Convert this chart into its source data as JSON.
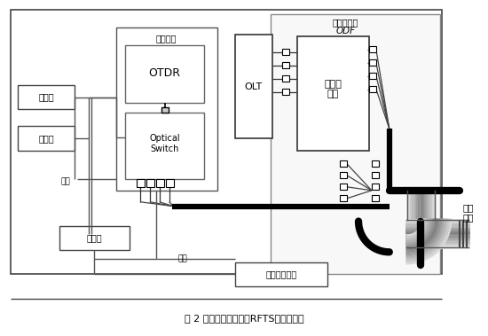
{
  "title": "图 2 集中光测量系统（RFTS）构成简图",
  "bg_color": "#ffffff",
  "odf_label": "光纤配线架",
  "odf_italic": "ODF",
  "jingbao_label": "警报灯",
  "fuwu_label": "服务器",
  "wangxian1": "网线",
  "wangxian2": "网线",
  "jiaohuan_label": "交换机",
  "jiankong_label": "监测仪器",
  "otdr_label": "OTDR",
  "optical_label": "Optical\nSwitch",
  "olt_label": "OLT",
  "heqi_label": "耦合器\n模块",
  "client_label": "客户端计算机",
  "waibu_label": "局外\n光缆"
}
